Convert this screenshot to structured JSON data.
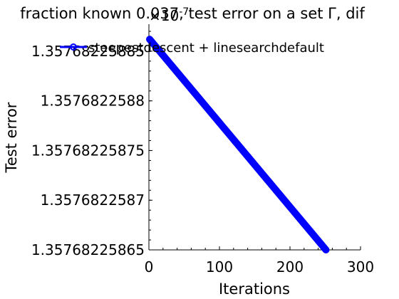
{
  "chart_data": {
    "type": "line",
    "title": "fraction known 0.037, test error on a set Γ, dif",
    "xlabel": "Iterations",
    "ylabel": "Test error",
    "xlim": [
      0,
      300
    ],
    "ylim": [
      1.35768225865,
      1.35768225887
    ],
    "x_ticks": [
      0,
      100,
      200,
      300
    ],
    "x_tick_labels": [
      "0",
      "100",
      "200",
      "300"
    ],
    "y_ticks": [
      1.35768225865,
      1.3576822587,
      1.35768225875,
      1.3576822588,
      1.35768225885
    ],
    "y_tick_labels": [
      "1.35768225865",
      "1.3576822587",
      "1.35768225875",
      "1.3576822588",
      "1.35768225885"
    ],
    "x_exponent_label": "×10",
    "x_exponent_power": "-7",
    "legend": {
      "location": "top",
      "entries": [
        "steepestdescent + linesearchdefault"
      ]
    },
    "grid": false,
    "series": [
      {
        "name": "steepestdescent + linesearchdefault",
        "color": "#0000ff",
        "marker": "circle",
        "x_start": 1,
        "x_end": 251,
        "y_start": 1.357682258862,
        "y_end": 1.35768225865
      }
    ]
  }
}
